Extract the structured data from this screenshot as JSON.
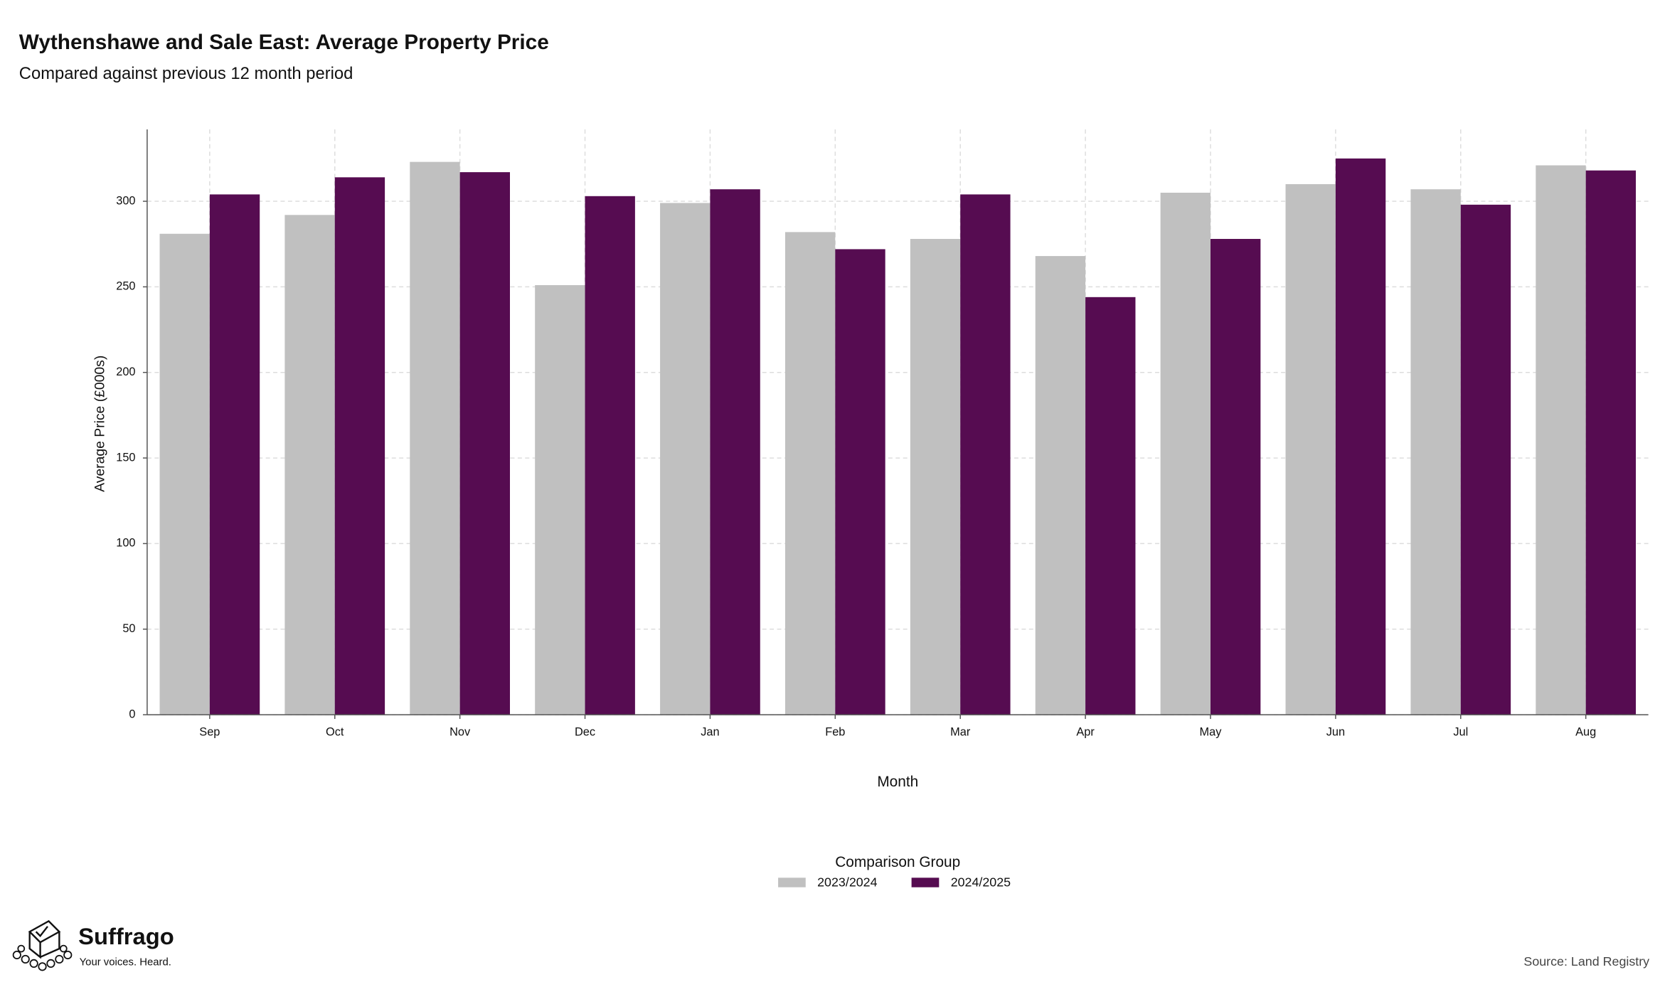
{
  "chart_data": {
    "type": "bar",
    "title": "Wythenshawe and Sale East: Average Property Price",
    "subtitle": "Compared against previous 12 month period",
    "x_label": "Month",
    "y_label": "Average Price (£000s)",
    "legend_title": "Comparison Group",
    "legend_position": "bottom",
    "categories": [
      "Sep",
      "Oct",
      "Nov",
      "Dec",
      "Jan",
      "Feb",
      "Mar",
      "Apr",
      "May",
      "Jun",
      "Jul",
      "Aug"
    ],
    "series": [
      {
        "name": "2023/2024",
        "color": "#c0c0c0",
        "values": [
          281,
          292,
          323,
          251,
          299,
          282,
          278,
          268,
          305,
          310,
          307,
          321
        ]
      },
      {
        "name": "2024/2025",
        "color": "#560c51",
        "values": [
          304,
          314,
          317,
          303,
          307,
          272,
          304,
          244,
          278,
          325,
          298,
          318
        ]
      }
    ],
    "ylim": [
      0,
      342
    ],
    "yticks": [
      0,
      50,
      100,
      150,
      200,
      250,
      300
    ],
    "grid": true,
    "source": "Source: Land Registry"
  },
  "branding": {
    "name": "Suffrago",
    "tagline": "Your voices. Heard."
  }
}
